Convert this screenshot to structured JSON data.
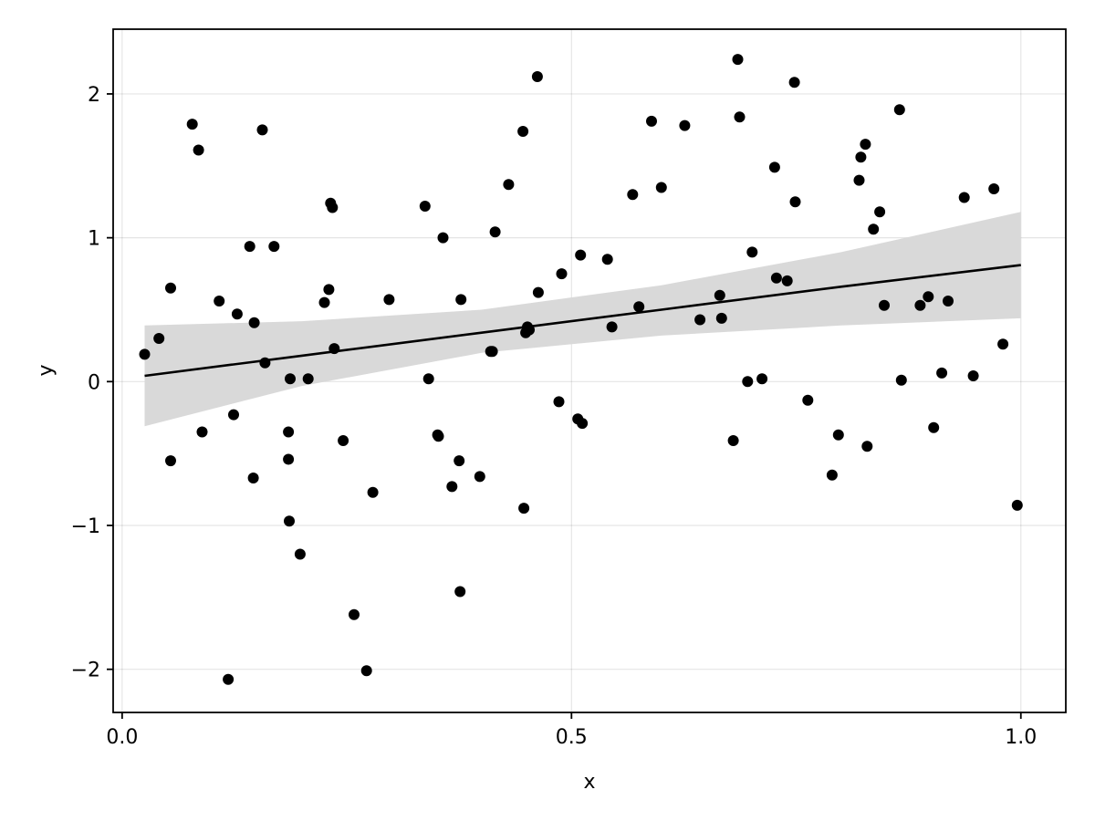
{
  "chart_data": {
    "type": "scatter",
    "title": "",
    "xlabel": "x",
    "ylabel": "y",
    "xlim": [
      -0.01,
      1.05
    ],
    "ylim": [
      -2.3,
      2.45
    ],
    "xticks": [
      0.0,
      0.5,
      1.0
    ],
    "xtick_labels": [
      "0.0",
      "0.5",
      "1.0"
    ],
    "yticks": [
      -2,
      -1,
      0,
      1,
      2
    ],
    "ytick_labels": [
      "−2",
      "−1",
      "0",
      "1",
      "2"
    ],
    "grid": true,
    "legend": "none",
    "colors": {
      "points": "#000000",
      "fit_line": "#000000",
      "confidence_band": "#d9d9d9",
      "grid": "#e6e6e6"
    },
    "points": {
      "x": [
        0.025,
        0.041,
        0.054,
        0.054,
        0.078,
        0.085,
        0.089,
        0.108,
        0.118,
        0.124,
        0.128,
        0.142,
        0.146,
        0.147,
        0.156,
        0.159,
        0.169,
        0.185,
        0.185,
        0.186,
        0.187,
        0.198,
        0.207,
        0.225,
        0.23,
        0.232,
        0.234,
        0.236,
        0.246,
        0.258,
        0.272,
        0.279,
        0.297,
        0.337,
        0.341,
        0.351,
        0.352,
        0.357,
        0.367,
        0.375,
        0.376,
        0.377,
        0.398,
        0.415,
        0.41,
        0.412,
        0.43,
        0.446,
        0.447,
        0.449,
        0.451,
        0.453,
        0.462,
        0.463,
        0.486,
        0.489,
        0.507,
        0.51,
        0.512,
        0.54,
        0.545,
        0.568,
        0.575,
        0.589,
        0.6,
        0.626,
        0.643,
        0.665,
        0.667,
        0.68,
        0.685,
        0.687,
        0.696,
        0.701,
        0.712,
        0.726,
        0.728,
        0.74,
        0.748,
        0.749,
        0.763,
        0.79,
        0.797,
        0.82,
        0.822,
        0.827,
        0.829,
        0.836,
        0.843,
        0.848,
        0.865,
        0.867,
        0.888,
        0.897,
        0.903,
        0.912,
        0.919,
        0.937,
        0.947,
        0.97,
        0.98,
        0.996
      ],
      "y": [
        0.19,
        0.3,
        0.65,
        -0.55,
        1.79,
        1.61,
        -0.35,
        0.56,
        -2.07,
        -0.23,
        0.47,
        0.94,
        -0.67,
        0.41,
        1.75,
        0.13,
        0.94,
        -0.35,
        -0.54,
        -0.97,
        0.02,
        -1.2,
        0.02,
        0.55,
        0.64,
        1.24,
        1.21,
        0.23,
        -0.41,
        -1.62,
        -2.01,
        -0.77,
        0.57,
        1.22,
        0.02,
        -0.37,
        -0.38,
        1.0,
        -0.73,
        -0.55,
        -1.46,
        0.57,
        -0.66,
        1.04,
        0.21,
        0.21,
        1.37,
        1.74,
        -0.88,
        0.34,
        0.38,
        0.36,
        2.12,
        0.62,
        -0.14,
        0.75,
        -0.26,
        0.88,
        -0.29,
        0.85,
        0.38,
        1.3,
        0.52,
        1.81,
        1.35,
        1.78,
        0.43,
        0.6,
        0.44,
        -0.41,
        2.24,
        1.84,
        0.0,
        0.9,
        0.02,
        1.49,
        0.72,
        0.7,
        2.08,
        1.25,
        -0.13,
        -0.65,
        -0.37,
        1.4,
        1.56,
        1.65,
        -0.45,
        1.06,
        1.18,
        0.53,
        1.89,
        0.01,
        0.53,
        0.59,
        -0.32,
        0.06,
        0.56,
        1.28,
        0.04,
        1.34,
        0.26,
        -0.86
      ]
    },
    "fit": {
      "x": [
        0.025,
        0.2,
        0.4,
        0.6,
        0.8,
        1.0
      ],
      "y": [
        0.04,
        0.18,
        0.34,
        0.5,
        0.66,
        0.81
      ],
      "lower": [
        -0.31,
        -0.03,
        0.2,
        0.32,
        0.39,
        0.44
      ],
      "upper": [
        0.39,
        0.42,
        0.5,
        0.67,
        0.9,
        1.18
      ]
    }
  }
}
